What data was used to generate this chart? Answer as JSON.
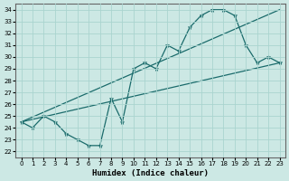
{
  "xlabel": "Humidex (Indice chaleur)",
  "bg_color": "#cce8e4",
  "line_color": "#1a6b6b",
  "grid_color": "#aad4cf",
  "xlim": [
    -0.5,
    23.5
  ],
  "ylim": [
    21.5,
    34.5
  ],
  "xticks": [
    0,
    1,
    2,
    3,
    4,
    5,
    6,
    7,
    8,
    9,
    10,
    11,
    12,
    13,
    14,
    15,
    16,
    17,
    18,
    19,
    20,
    21,
    22,
    23
  ],
  "yticks": [
    22,
    23,
    24,
    25,
    26,
    27,
    28,
    29,
    30,
    31,
    32,
    33,
    34
  ],
  "line1_x": [
    0,
    1,
    2,
    3,
    4,
    5,
    6,
    7,
    8,
    9,
    10,
    11,
    12,
    13,
    14,
    15,
    16,
    17,
    18,
    19,
    20,
    21,
    22,
    23
  ],
  "line1_y": [
    24.5,
    24.0,
    25.0,
    24.5,
    23.5,
    23.0,
    22.5,
    22.5,
    26.5,
    24.5,
    29.0,
    29.5,
    29.0,
    31.0,
    30.5,
    32.5,
    33.5,
    34.0,
    34.0,
    33.5,
    31.0,
    29.5,
    30.0,
    29.5
  ],
  "line2_x": [
    0,
    23
  ],
  "line2_y": [
    24.5,
    29.5
  ],
  "line3_x": [
    0,
    23
  ],
  "line3_y": [
    24.5,
    34.0
  ]
}
